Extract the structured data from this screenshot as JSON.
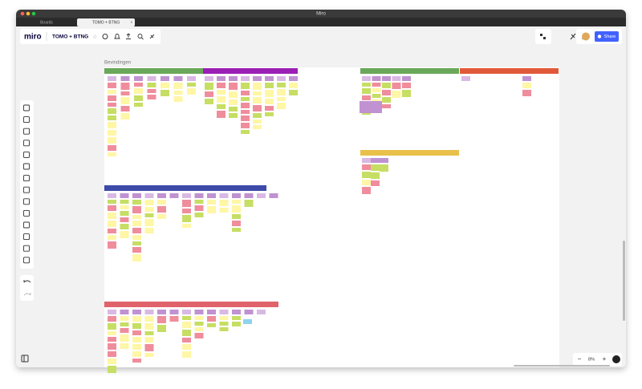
{
  "window": {
    "title": "Miro"
  },
  "tabs": [
    "Boards",
    "TOMO + BTNG"
  ],
  "toolbar": {
    "logo": "miro",
    "board_name": "TOMO + BTNG",
    "share": "Share"
  },
  "board": {
    "frame_label": "Bevindingen"
  },
  "zoom": {
    "level": "8%",
    "minus": "−",
    "plus": "+"
  }
}
